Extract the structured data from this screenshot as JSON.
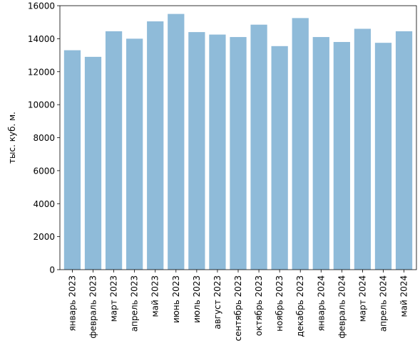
{
  "chart_data": {
    "type": "bar",
    "title": "",
    "xlabel": "",
    "ylabel": "тыс. куб. м.",
    "ylim": [
      0,
      16000
    ],
    "yticks": [
      0,
      2000,
      4000,
      6000,
      8000,
      10000,
      12000,
      14000,
      16000
    ],
    "grid": false,
    "bar_color": "#8fbbd9",
    "categories": [
      "январь 2023",
      "февраль 2023",
      "март 2023",
      "апрель 2023",
      "май 2023",
      "июнь 2023",
      "июль 2023",
      "август 2023",
      "сентябрь 2023",
      "октябрь 2023",
      "ноябрь 2023",
      "декабрь 2023",
      "январь 2024",
      "февраль 2024",
      "март 2024",
      "апрель 2024",
      "май 2024"
    ],
    "values": [
      13300,
      12900,
      14450,
      14000,
      15050,
      15500,
      14400,
      14250,
      14100,
      14850,
      13550,
      15250,
      14100,
      13800,
      14600,
      13750,
      14450
    ]
  }
}
